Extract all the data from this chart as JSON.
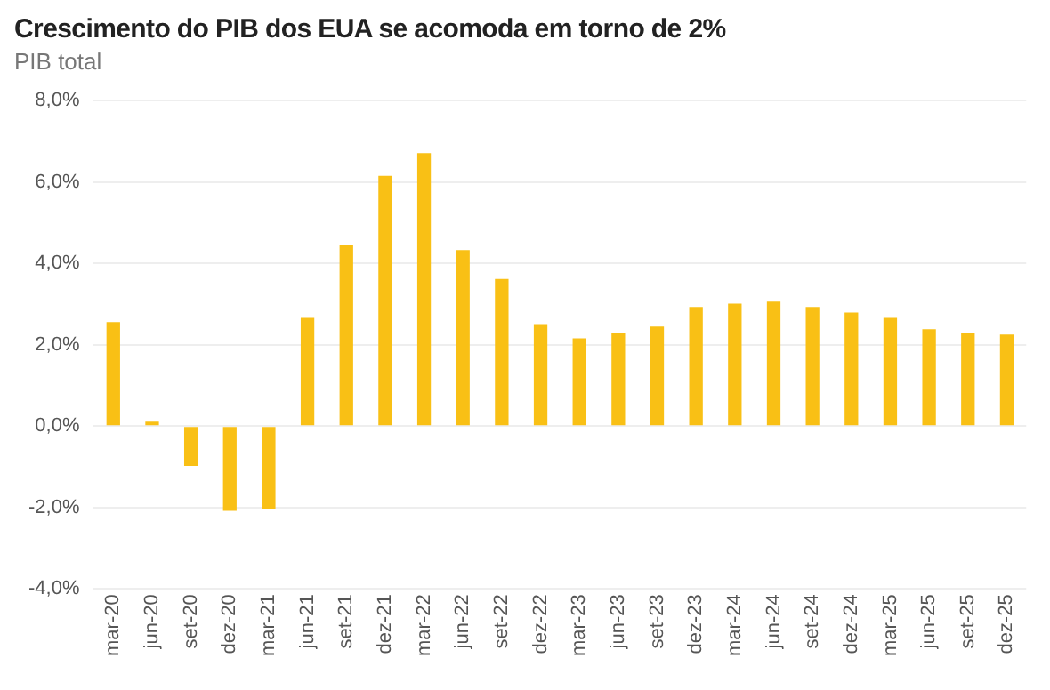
{
  "chart_data": {
    "type": "bar",
    "title": "Crescimento do PIB dos EUA se acomoda em torno de 2%",
    "subtitle": "PIB total",
    "categories": [
      "mar-20",
      "jun-20",
      "set-20",
      "dez-20",
      "mar-21",
      "jun-21",
      "set-21",
      "dez-21",
      "mar-22",
      "jun-22",
      "set-22",
      "dez-22",
      "mar-23",
      "jun-23",
      "set-23",
      "dez-23",
      "mar-24",
      "jun-24",
      "set-24",
      "dez-24",
      "mar-25",
      "jun-25",
      "set-25",
      "dez-25"
    ],
    "values": [
      2.56,
      0.11,
      -0.98,
      -2.08,
      -2.03,
      2.66,
      4.44,
      6.15,
      6.71,
      4.33,
      3.62,
      2.51,
      2.16,
      2.29,
      2.45,
      2.93,
      3.01,
      3.06,
      2.93,
      2.79,
      2.66,
      2.38,
      2.29,
      2.25
    ],
    "color": "#f9c015",
    "ylim": [
      -4,
      8
    ],
    "yticks": [
      {
        "value": -4,
        "label": "-4,0%"
      },
      {
        "value": -2,
        "label": "-2,0%"
      },
      {
        "value": 0,
        "label": "0,0%"
      },
      {
        "value": 2,
        "label": "2,0%"
      },
      {
        "value": 4,
        "label": "4,0%"
      },
      {
        "value": 6,
        "label": "6,0%"
      },
      {
        "value": 8,
        "label": "8,0%"
      }
    ],
    "grid": "y"
  }
}
